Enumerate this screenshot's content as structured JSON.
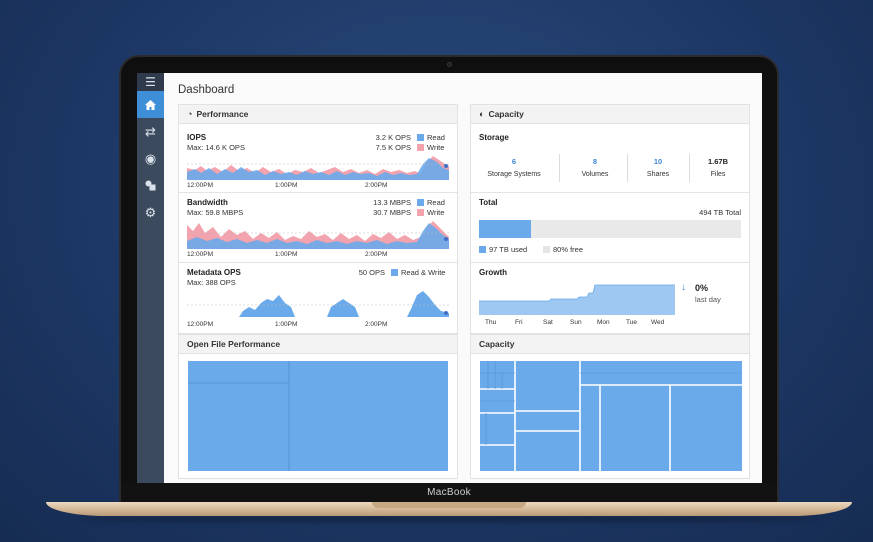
{
  "device": {
    "brand": "MacBook"
  },
  "sidebar": {
    "items": [
      {
        "name": "menu",
        "icon": "menu-icon"
      },
      {
        "name": "home",
        "icon": "home-icon"
      },
      {
        "name": "shuffle",
        "icon": "shuffle-icon"
      },
      {
        "name": "target",
        "icon": "target-icon"
      },
      {
        "name": "shapes",
        "icon": "shapes-icon"
      },
      {
        "name": "settings",
        "icon": "gear-icon"
      }
    ]
  },
  "page": {
    "title": "Dashboard"
  },
  "performance": {
    "title": "Performance",
    "iops": {
      "title": "IOPS",
      "max": "Max: 14.6 K OPS",
      "read_value": "3.2 K OPS",
      "write_value": "7.5 K OPS",
      "read_label": "Read",
      "write_label": "Write"
    },
    "bandwidth": {
      "title": "Bandwidth",
      "max": "Max: 59.8 MBPS",
      "read_value": "13.3 MBPS",
      "write_value": "30.7 MBPS",
      "read_label": "Read",
      "write_label": "Write"
    },
    "metadata": {
      "title": "Metadata OPS",
      "max": "Max: 388 OPS",
      "value": "50 OPS",
      "label": "Read & Write"
    },
    "ticks": [
      "12:00PM",
      "1:00PM",
      "2:00PM"
    ]
  },
  "capacity": {
    "title": "Capacity",
    "storage": {
      "title": "Storage",
      "stats": [
        {
          "value": "6",
          "label": "Storage Systems"
        },
        {
          "value": "8",
          "label": "Volumes"
        },
        {
          "value": "10",
          "label": "Shares"
        },
        {
          "value": "1.67B",
          "label": "Files"
        }
      ]
    },
    "total": {
      "title": "Total",
      "value": "494 TB Total",
      "used_label": "97 TB used",
      "free_label": "80% free",
      "used_fraction": 0.2
    },
    "growth": {
      "title": "Growth",
      "percent": "0%",
      "period": "last day",
      "days": [
        "Thu",
        "Fri",
        "Sat",
        "Sun",
        "Mon",
        "Tue",
        "Wed"
      ]
    }
  },
  "open_file_performance": {
    "title": "Open File Performance"
  },
  "capacity_treemap": {
    "title": "Capacity"
  },
  "colors": {
    "read": "#6aaaea",
    "write": "#f2a3ad",
    "accent": "#3f8fd8",
    "sidebar": "#3c4a5e"
  }
}
